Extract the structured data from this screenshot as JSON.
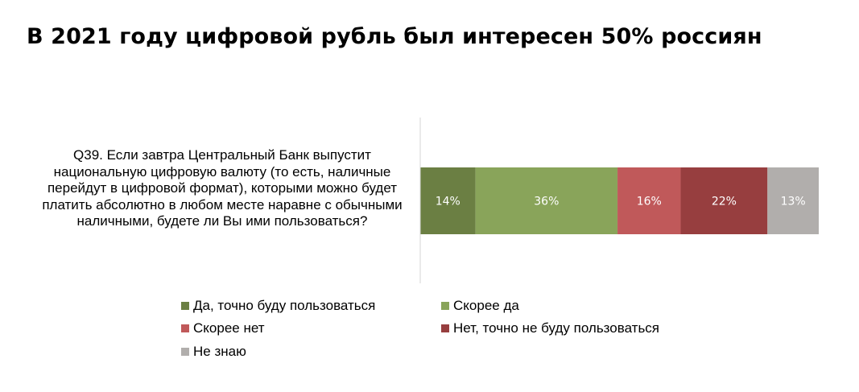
{
  "title": "В 2021 году цифровой рубль был интересен 50% россиян",
  "question": "Q39. Если завтра Центральный Банк выпустит национальную цифровую валюту (то есть, наличные перейдут в цифровой формат), которыми можно будет платить абсолютно в любом месте наравне с обычными наличными, будете ли Вы ими пользоваться?",
  "chart_data": {
    "type": "bar",
    "orientation": "horizontal",
    "stacked": true,
    "unit": "%",
    "categories": [
      "Q39. Если завтра Центральный Банк выпустит национальную цифровую валюту (то есть, наличные перейдут в цифровой формат), которыми можно будет платить абсолютно в любом месте наравне с обычными наличными, будете ли Вы ими пользоваться?"
    ],
    "series": [
      {
        "name": "Да, точно буду пользоваться",
        "values": [
          14
        ],
        "label": "14%",
        "color": "#6b7f43"
      },
      {
        "name": "Скорее да",
        "values": [
          36
        ],
        "label": "36%",
        "color": "#89a45a"
      },
      {
        "name": "Скорее нет",
        "values": [
          16
        ],
        "label": "16%",
        "color": "#c0595a"
      },
      {
        "name": "Нет, точно не буду пользоваться",
        "values": [
          22
        ],
        "label": "22%",
        "color": "#973e3f"
      },
      {
        "name": "Не знаю",
        "values": [
          13
        ],
        "label": "13%",
        "color": "#b1aeac"
      }
    ],
    "xlim": [
      0,
      101
    ],
    "grid": false,
    "legend_position": "bottom"
  }
}
